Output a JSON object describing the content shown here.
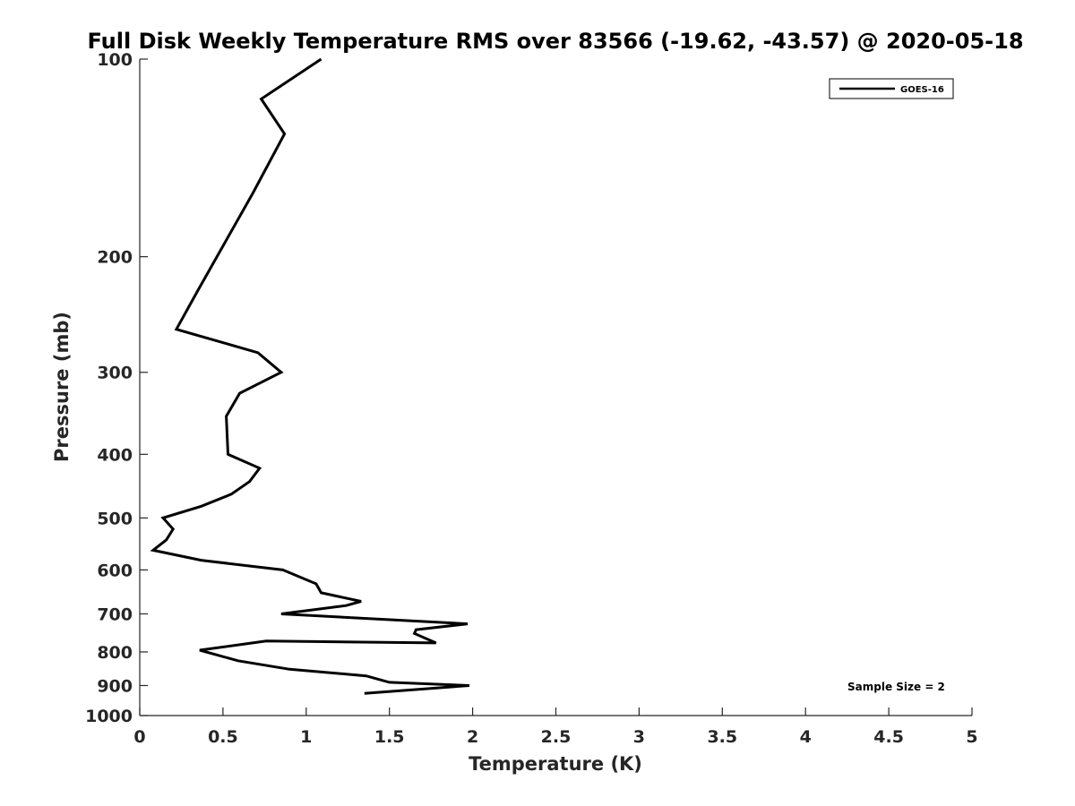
{
  "chart_data": {
    "type": "line",
    "title": "Full Disk Weekly Temperature RMS over 83566 (-19.62, -43.57) @ 2020-05-18",
    "xlabel": "Temperature (K)",
    "ylabel": "Pressure (mb)",
    "xlim": [
      0,
      5
    ],
    "ylim": [
      100,
      1000
    ],
    "y_scale": "log",
    "y_reversed": true,
    "x_ticks": [
      "0",
      "0.5",
      "1",
      "1.5",
      "2",
      "2.5",
      "3",
      "3.5",
      "4",
      "4.5",
      "5"
    ],
    "x_tick_values": [
      0,
      0.5,
      1,
      1.5,
      2,
      2.5,
      3,
      3.5,
      4,
      4.5,
      5
    ],
    "y_ticks": [
      "100",
      "200",
      "300",
      "400",
      "500",
      "600",
      "700",
      "800",
      "900",
      "1000"
    ],
    "y_tick_values": [
      100,
      200,
      300,
      400,
      500,
      600,
      700,
      800,
      900,
      1000
    ],
    "grid": false,
    "legend_position": "top-right",
    "series": [
      {
        "name": "GOES-16",
        "color": "#000000",
        "x": [
          1.09,
          0.73,
          0.87,
          0.68,
          0.35,
          0.22,
          0.71,
          0.85,
          0.6,
          0.52,
          0.53,
          0.72,
          0.66,
          0.55,
          0.37,
          0.14,
          0.2,
          0.16,
          0.08,
          0.37,
          0.86,
          1.06,
          1.09,
          1.33,
          1.24,
          0.85,
          1.97,
          1.66,
          1.65,
          1.78,
          0.76,
          0.36,
          0.59,
          0.9,
          1.36,
          1.5,
          1.98,
          1.35
        ],
        "y": [
          100,
          115,
          130,
          160,
          225,
          258,
          280,
          300,
          323,
          350,
          400,
          420,
          440,
          460,
          480,
          500,
          520,
          540,
          560,
          580,
          600,
          630,
          650,
          670,
          680,
          700,
          725,
          740,
          750,
          775,
          770,
          795,
          825,
          850,
          870,
          890,
          900,
          925
        ]
      }
    ],
    "annotations": [
      "Sample Size = 2"
    ]
  }
}
